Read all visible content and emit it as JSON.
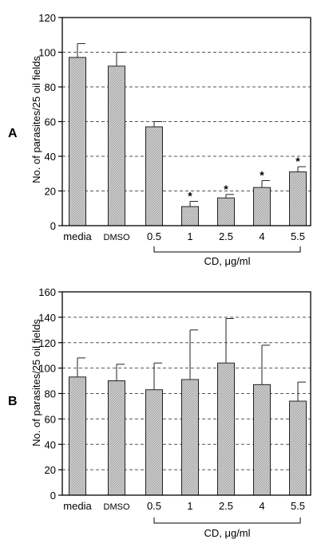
{
  "chart_data": [
    {
      "type": "bar",
      "panel_label": "A",
      "ylabel": "No. of parasites/25 oil fields",
      "ylim": [
        0,
        120
      ],
      "yticks": [
        0,
        20,
        40,
        60,
        80,
        100,
        120
      ],
      "grid": "horizontal dashed",
      "categories": [
        "media",
        "DMSO",
        "0.5",
        "1",
        "2.5",
        "4",
        "5.5"
      ],
      "values": [
        97,
        92,
        57,
        11,
        16,
        22,
        31
      ],
      "errors": [
        8,
        8,
        3,
        3,
        2,
        4,
        3
      ],
      "significance": [
        "",
        "",
        "",
        "*",
        "*",
        "*",
        "*"
      ],
      "group_label": "CD, μg/ml"
    },
    {
      "type": "bar",
      "panel_label": "B",
      "ylabel": "No. of parasites/25 oil fields",
      "ylim": [
        0,
        160
      ],
      "yticks": [
        0,
        20,
        40,
        60,
        80,
        100,
        120,
        140,
        160
      ],
      "grid": "horizontal dashed",
      "categories": [
        "media",
        "DMSO",
        "0.5",
        "1",
        "2.5",
        "4",
        "5.5"
      ],
      "values": [
        93,
        90,
        83,
        91,
        104,
        87,
        74
      ],
      "errors": [
        15,
        13,
        21,
        39,
        35,
        31,
        15
      ],
      "significance": [
        "",
        "",
        "",
        "",
        "",
        "",
        ""
      ],
      "group_label": "CD, μg/ml"
    }
  ],
  "style": {
    "bar_fill": "#c8c8c8",
    "axis_color": "#000000",
    "grid_color": "#555555"
  }
}
